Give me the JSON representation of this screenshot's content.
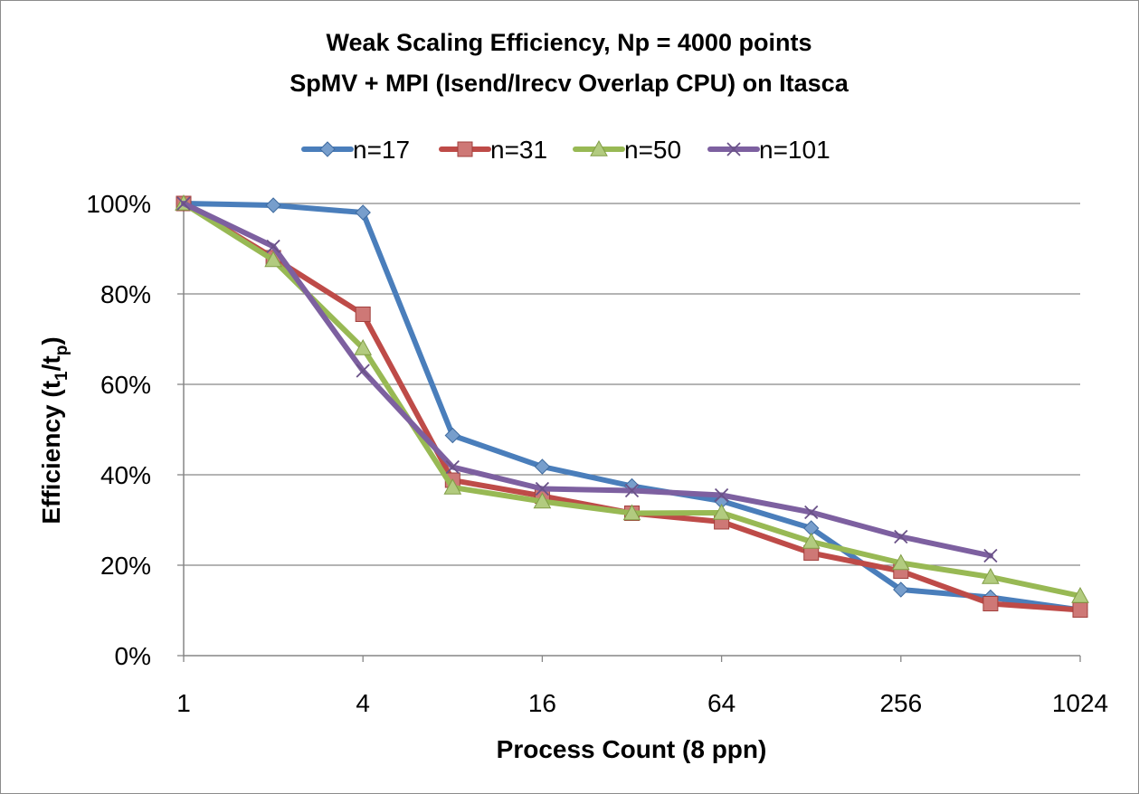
{
  "chart_data": {
    "type": "line",
    "title": "Weak Scaling Efficiency, Np = 4000 points",
    "subtitle": "SpMV + MPI (Isend/Irecv Overlap CPU) on Itasca",
    "xlabel": "Process Count (8 ppn)",
    "ylabel": {
      "prefix": "Efficiency (t",
      "sub1": "1",
      "mid": "/t",
      "sub2": "p",
      "suffix": ")"
    },
    "x_scale": "log2",
    "x_ticks": [
      1,
      4,
      16,
      64,
      256,
      1024
    ],
    "x_tick_labels": [
      "1",
      "4",
      "16",
      "64",
      "256",
      "1024"
    ],
    "y_ticks": [
      0,
      20,
      40,
      60,
      80,
      100
    ],
    "y_tick_labels": [
      "0%",
      "20%",
      "40%",
      "60%",
      "80%",
      "100%"
    ],
    "ylim": [
      0,
      100
    ],
    "grid": true,
    "legend_position": "top",
    "x": [
      1,
      2,
      4,
      8,
      16,
      32,
      64,
      128,
      256,
      512,
      1024
    ],
    "series": [
      {
        "name": "n=17",
        "color": "#4a7ebb",
        "marker": "diamond",
        "values": [
          100,
          99.6,
          98,
          48.7,
          41.8,
          37.5,
          34.2,
          28.2,
          14.6,
          12.9,
          10.1
        ]
      },
      {
        "name": "n=31",
        "color": "#be4b48",
        "marker": "square",
        "values": [
          100,
          88,
          75.5,
          38.8,
          35.3,
          31.5,
          29.6,
          22.7,
          18.7,
          11.5,
          10.1
        ]
      },
      {
        "name": "n=50",
        "color": "#98b954",
        "marker": "triangle",
        "values": [
          100,
          87.5,
          68,
          37.2,
          34.1,
          31.5,
          31.6,
          25.2,
          20.5,
          17.4,
          13.2
        ]
      },
      {
        "name": "n=101",
        "color": "#7d60a0",
        "marker": "x",
        "values": [
          100,
          90.5,
          63,
          41.7,
          36.9,
          36.5,
          35.5,
          31.7,
          26.3,
          22.1,
          null
        ]
      }
    ]
  }
}
